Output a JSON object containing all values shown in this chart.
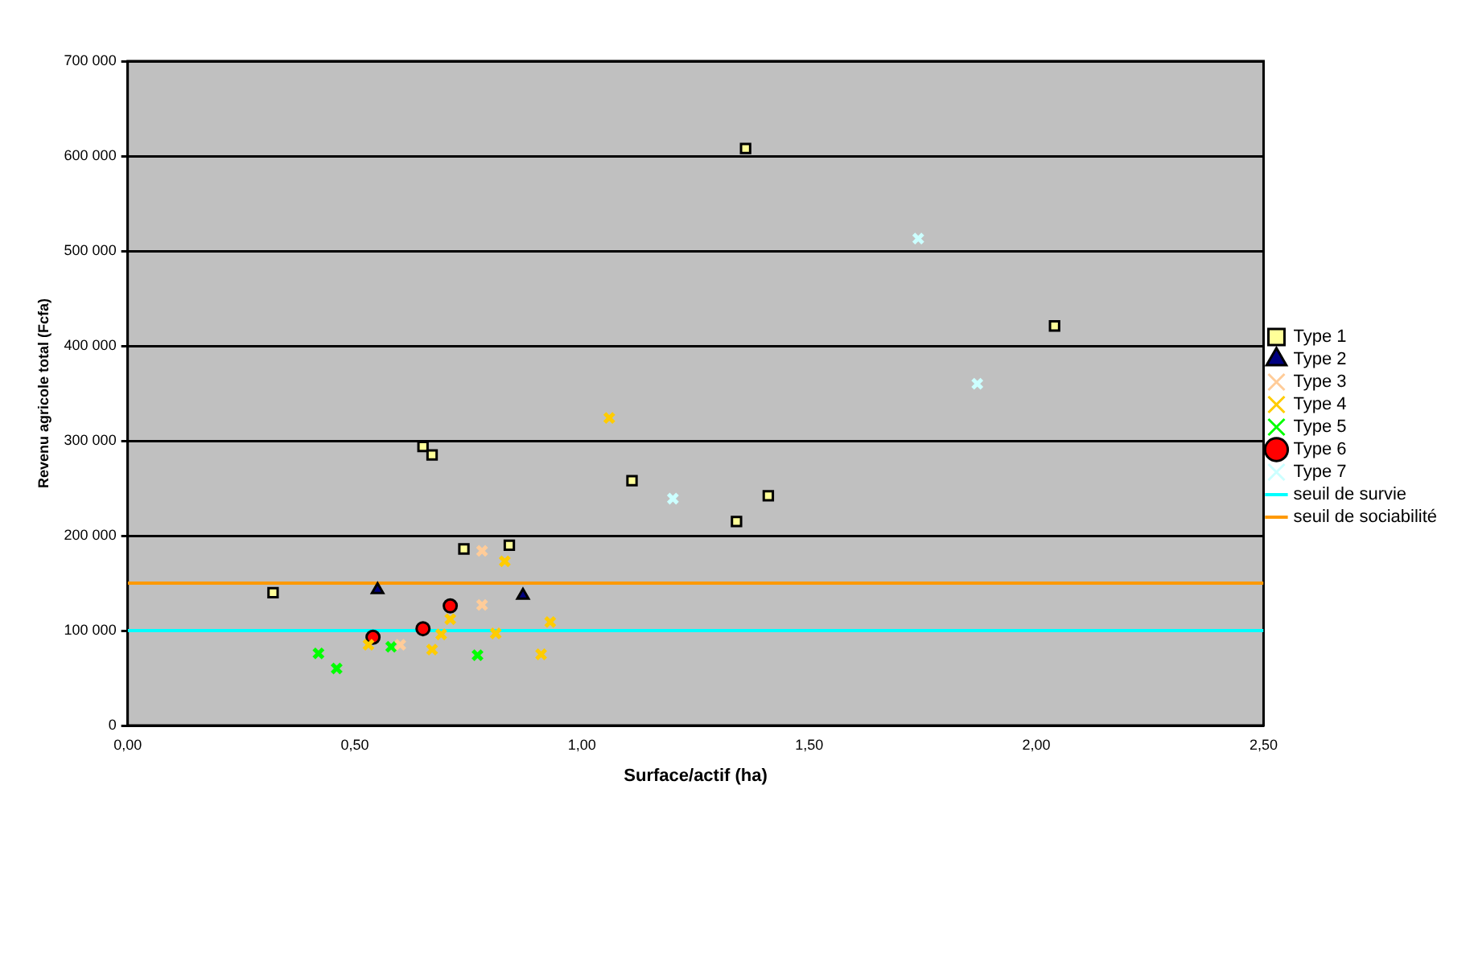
{
  "chart_data": {
    "type": "scatter",
    "xlabel": "Surface/actif (ha)",
    "ylabel": "Revenu agricole total (Fcfa)",
    "xlim": [
      0,
      2.5
    ],
    "xticks": [
      {
        "value": 0,
        "label": "0,00"
      },
      {
        "value": 0.5,
        "label": "0,50"
      },
      {
        "value": 1,
        "label": "1,00"
      },
      {
        "value": 1.5,
        "label": "1,50"
      },
      {
        "value": 2,
        "label": "2,00"
      },
      {
        "value": 2.5,
        "label": "2,50"
      }
    ],
    "ylim": [
      0,
      700000
    ],
    "yticks": [
      {
        "value": 0,
        "label": "0"
      },
      {
        "value": 100000,
        "label": "100 000"
      },
      {
        "value": 200000,
        "label": "200 000"
      },
      {
        "value": 300000,
        "label": "300 000"
      },
      {
        "value": 400000,
        "label": "400 000"
      },
      {
        "value": 500000,
        "label": "500 000"
      },
      {
        "value": 600000,
        "label": "600 000"
      },
      {
        "value": 700000,
        "label": "700 000"
      }
    ],
    "grid": "y",
    "legend": "right",
    "series": [
      {
        "name": "Type 1",
        "color": "#ffff99",
        "marker": "square",
        "x": [
          1.36,
          2.04,
          1.11,
          1.41,
          1.34,
          0.65,
          0.67,
          0.74,
          0.84,
          0.32
        ],
        "values": [
          608000,
          421000,
          258000,
          242000,
          215000,
          294000,
          285000,
          186000,
          190000,
          140000
        ]
      },
      {
        "name": "Type 2",
        "color": "#000080",
        "marker": "triangle",
        "x": [
          0.55,
          0.87
        ],
        "values": [
          143000,
          137000
        ]
      },
      {
        "name": "Type 3",
        "color": "#ffcc99",
        "marker": "cross",
        "x": [
          0.78,
          0.78,
          0.6
        ],
        "values": [
          184000,
          127000,
          85000
        ]
      },
      {
        "name": "Type 4",
        "color": "#ffcc00",
        "marker": "cross",
        "x": [
          1.06,
          0.83,
          0.71,
          0.69,
          0.81,
          0.93,
          0.53,
          0.67,
          0.91
        ],
        "values": [
          324000,
          173000,
          112000,
          96000,
          97000,
          109000,
          85000,
          80000,
          75000
        ]
      },
      {
        "name": "Type 5",
        "color": "#00ff00",
        "marker": "cross",
        "x": [
          0.42,
          0.46,
          0.58,
          0.77
        ],
        "values": [
          76000,
          60000,
          83000,
          74000
        ]
      },
      {
        "name": "Type 6",
        "color": "#ff0000",
        "marker": "circle",
        "x": [
          0.54,
          0.65,
          0.71
        ],
        "values": [
          93000,
          102000,
          126000
        ]
      },
      {
        "name": "Type 7",
        "color": "#ccffff",
        "marker": "cross",
        "x": [
          1.74,
          1.87,
          1.2
        ],
        "values": [
          513000,
          360000,
          239000
        ]
      }
    ],
    "ref_lines": [
      {
        "axis": "y",
        "value": 100000,
        "label": "seuil de survie",
        "color": "#00ffff"
      },
      {
        "axis": "y",
        "value": 150000,
        "label": "seuil de sociabilité",
        "color": "#ff9900"
      }
    ]
  }
}
